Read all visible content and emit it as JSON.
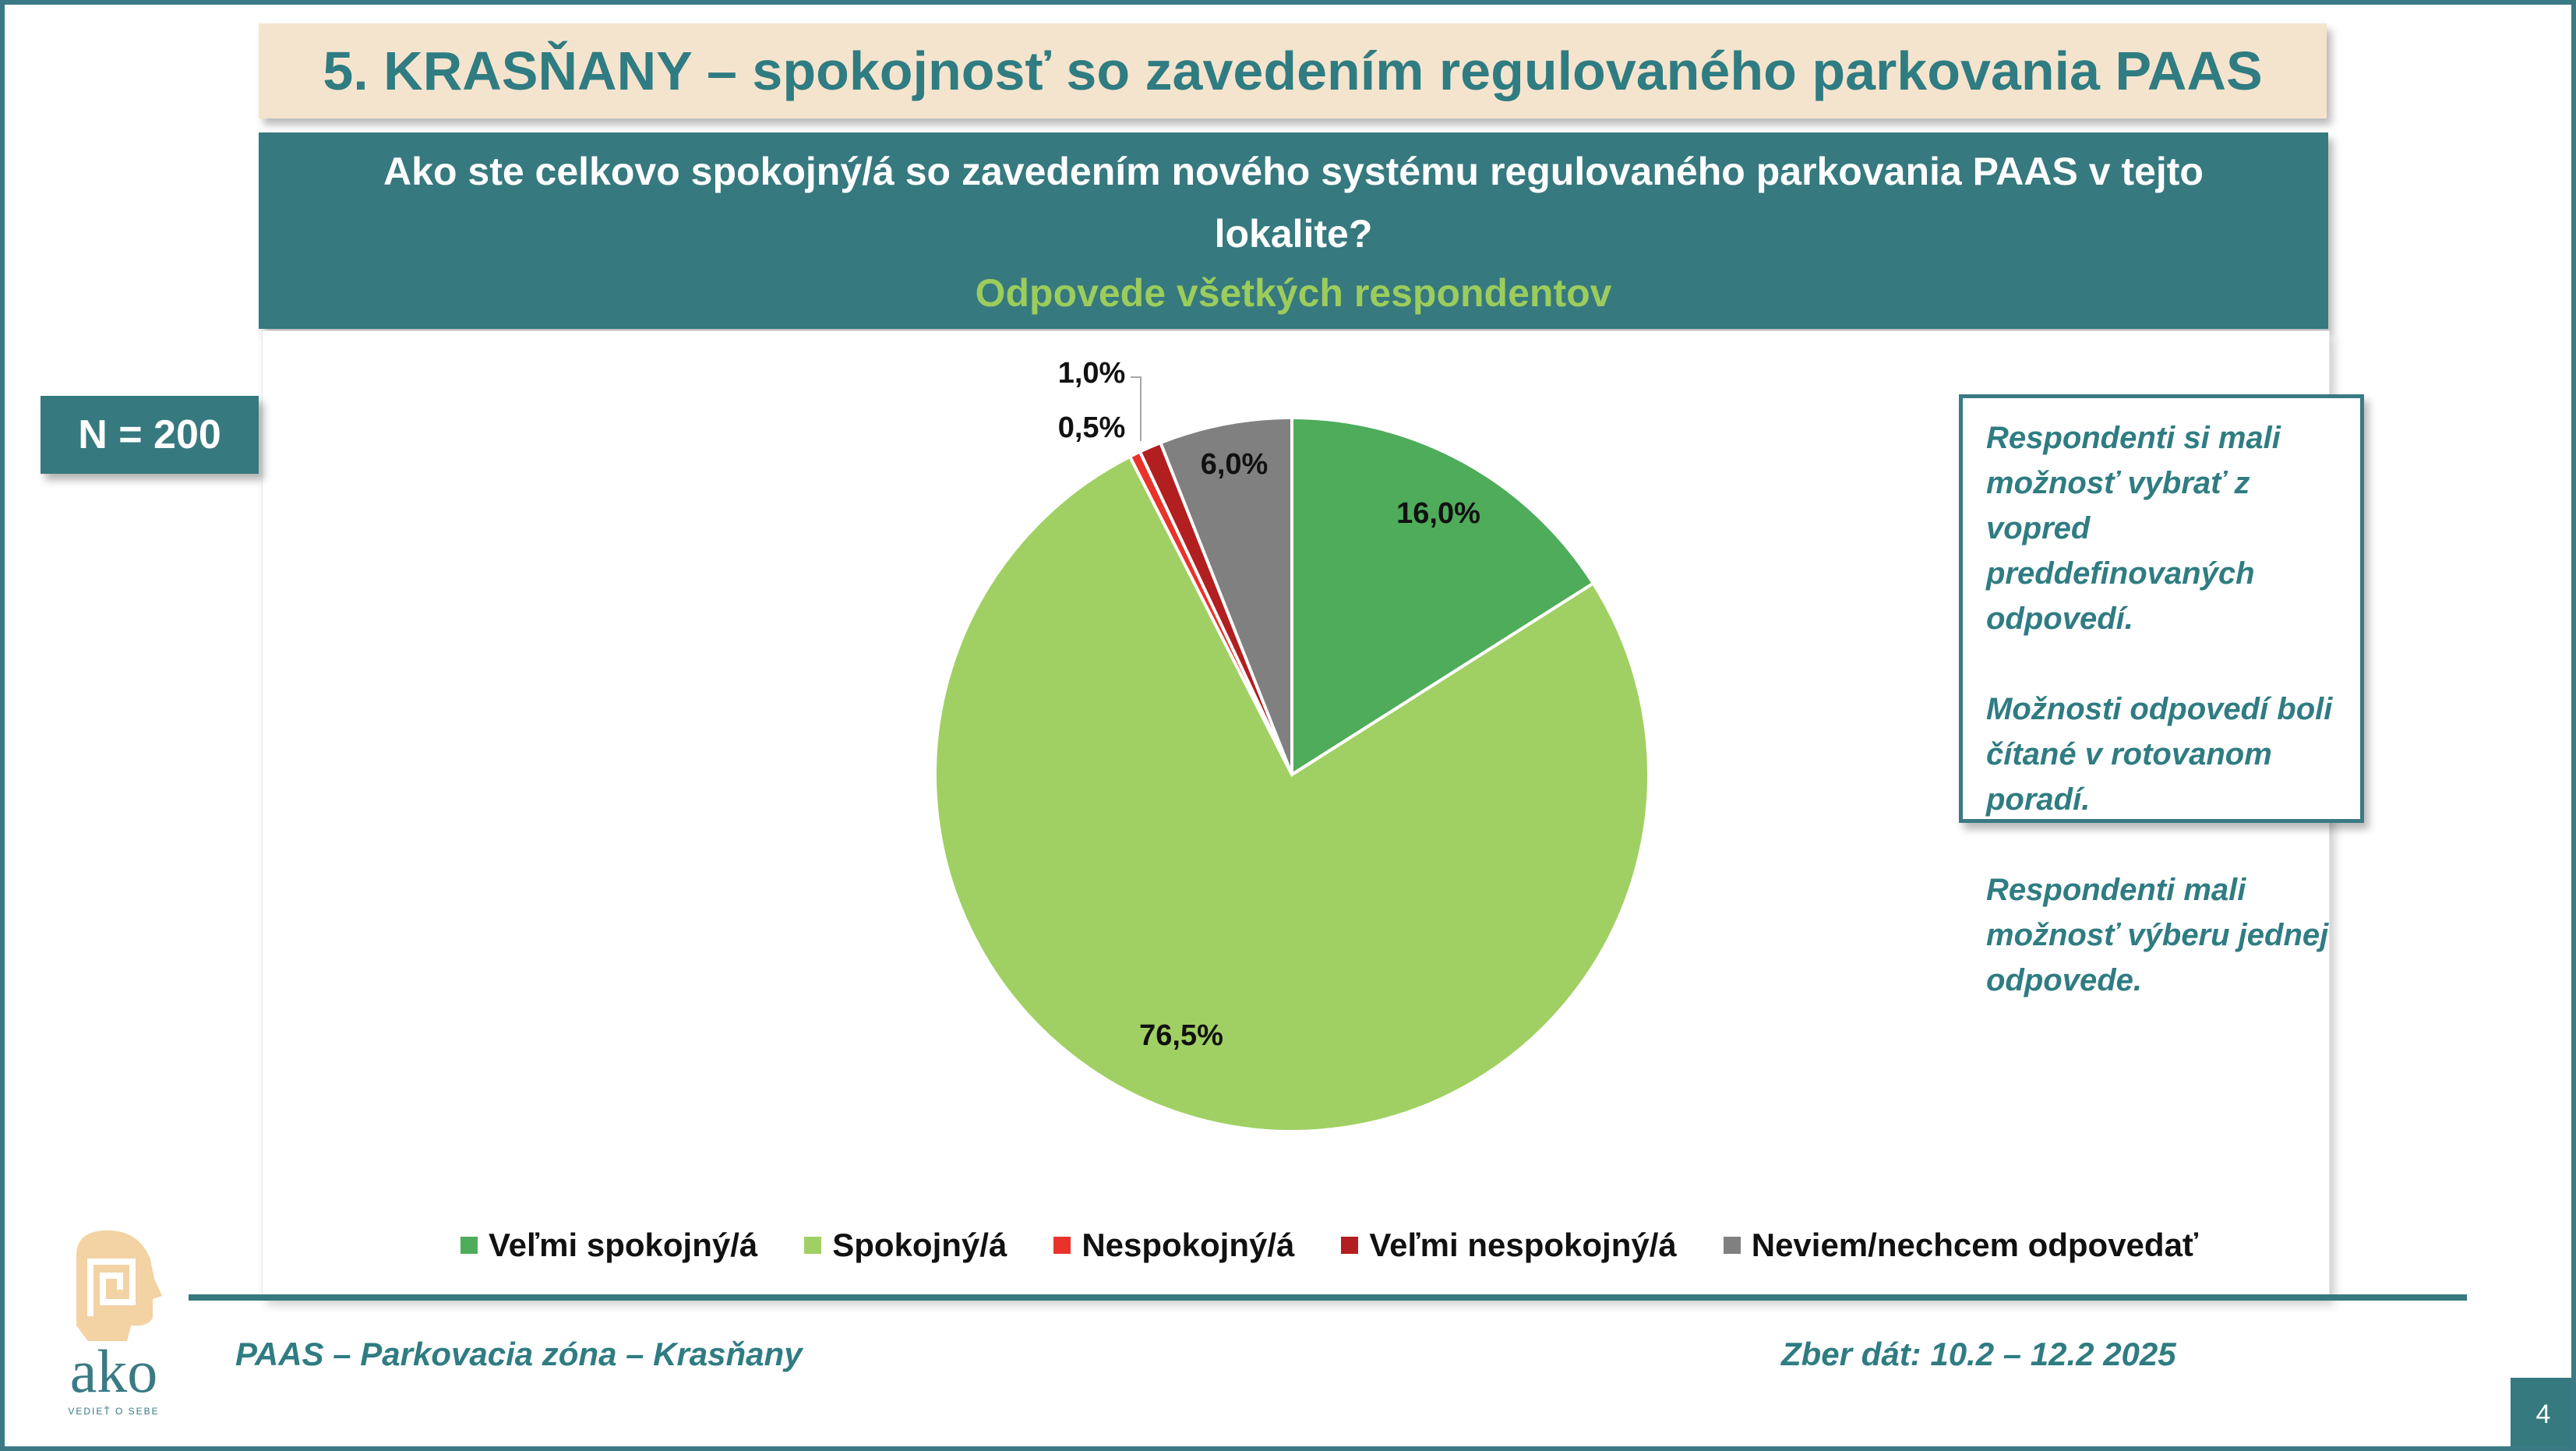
{
  "header": {
    "title": "5. KRASŇANY – spokojnosť so zavedením  regulovaného parkovania PAAS"
  },
  "question": {
    "text": "Ako ste celkovo spokojný/á so zavedením nového systému regulovaného parkovania PAAS v tejto lokalite?",
    "subtitle": "Odpovede všetkých respondentov"
  },
  "sample": {
    "label": "N = 200"
  },
  "note": {
    "paragraphs": [
      "Respondenti si mali možnosť vybrať z vopred preddefinovaných odpovedí.",
      "Možnosti odpovedí boli čítané v rotovanom poradí.",
      "Respondenti mali možnosť výberu jednej odpovede."
    ]
  },
  "chart_data": {
    "type": "pie",
    "title": "",
    "series": [
      {
        "name": "Veľmi spokojný/á",
        "value": 16.0,
        "label": "16,0%",
        "color": "#4eac5b"
      },
      {
        "name": "Spokojný/á",
        "value": 76.5,
        "label": "76,5%",
        "color": "#a0d063"
      },
      {
        "name": "Nespokojný/á",
        "value": 0.5,
        "label": "0,5%",
        "color": "#e8332a"
      },
      {
        "name": "Veľmi nespokojný/á",
        "value": 1.0,
        "label": "1,0%",
        "color": "#b21f20"
      },
      {
        "name": "Neviem/nechcem odpovedať",
        "value": 6.0,
        "label": "6,0%",
        "color": "#808080"
      }
    ],
    "legend_position": "bottom"
  },
  "footer": {
    "left": "PAAS – Parkovacia zóna – Krasňany",
    "right": "Zber dát: 10.2 – 12.2 2025"
  },
  "logo": {
    "text": "ako",
    "tagline": "VEDIEŤ O SEBE"
  },
  "page": {
    "number": "4"
  }
}
